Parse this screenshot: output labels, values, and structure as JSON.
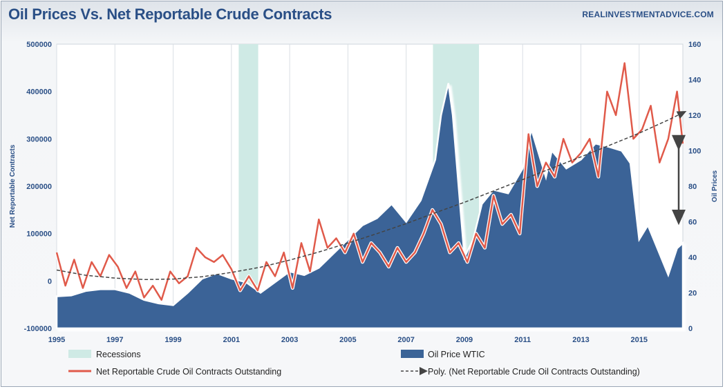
{
  "title": "Oil Prices Vs. Net Reportable Crude Contracts",
  "site": "REALINVESTMENTADVICE.COM",
  "chart_data": {
    "type": "area",
    "title": "Oil Prices Vs. Net Reportable Crude Contracts",
    "ylabel_left": "Net Reportable Contracts",
    "ylabel_right": "Oil Prices",
    "xlim": [
      1995,
      2016.5
    ],
    "ylim_left": [
      -100000,
      500000
    ],
    "ylim_right": [
      0,
      160
    ],
    "x_ticks": [
      "1995",
      "1997",
      "1999",
      "2001",
      "2003",
      "2005",
      "2007",
      "2009",
      "2011",
      "2013",
      "2015"
    ],
    "y_left_ticks": [
      "-100000",
      "0",
      "100000",
      "200000",
      "300000",
      "400000",
      "500000"
    ],
    "y_right_ticks": [
      "0",
      "20",
      "40",
      "60",
      "80",
      "100",
      "120",
      "140",
      "160"
    ],
    "grid": "vertical",
    "legend_position": "bottom",
    "colors": {
      "recessions": "#cfeae5",
      "oil": "#3b6497",
      "contracts": "#e05a4a",
      "poly": "#444444",
      "arrow": "#444444"
    },
    "recessions": [
      [
        2001.25,
        2001.92
      ],
      [
        2007.92,
        2009.5
      ]
    ],
    "series": [
      {
        "name": "Oil Price WTIC",
        "axis": "right",
        "style": "area",
        "x": [
          1995,
          1995.5,
          1996,
          1996.5,
          1997,
          1997.5,
          1998,
          1998.5,
          1999,
          1999.5,
          2000,
          2000.5,
          2001,
          2001.5,
          2002,
          2002.5,
          2003,
          2003.5,
          2004,
          2004.5,
          2005,
          2005.5,
          2006,
          2006.5,
          2007,
          2007.5,
          2008,
          2008.2,
          2008.45,
          2008.6,
          2008.9,
          2009,
          2009.3,
          2009.6,
          2010,
          2010.5,
          2011,
          2011.3,
          2011.8,
          2012,
          2012.5,
          2013,
          2013.5,
          2014,
          2014.4,
          2014.7,
          2015,
          2015.3,
          2015.7,
          2016,
          2016.3,
          2016.5
        ],
        "y": [
          18,
          18.5,
          21,
          22,
          22,
          20,
          16,
          14,
          13,
          20,
          28,
          31,
          28,
          26,
          20,
          26,
          32,
          30,
          34,
          42,
          50,
          58,
          62,
          70,
          60,
          72,
          95,
          120,
          138,
          120,
          60,
          40,
          50,
          70,
          78,
          76,
          90,
          112,
          85,
          100,
          90,
          95,
          104,
          102,
          100,
          93,
          50,
          58,
          42,
          30,
          45,
          48
        ]
      },
      {
        "name": "Net Reportable Crude Oil Contracts Outstanding",
        "axis": "left",
        "style": "line",
        "x": [
          1995,
          1995.3,
          1995.6,
          1995.9,
          1996.2,
          1996.5,
          1996.8,
          1997.1,
          1997.4,
          1997.7,
          1998,
          1998.3,
          1998.6,
          1998.9,
          1999.2,
          1999.5,
          1999.8,
          2000.1,
          2000.4,
          2000.7,
          2001,
          2001.3,
          2001.6,
          2001.9,
          2002.2,
          2002.5,
          2002.8,
          2003.1,
          2003.4,
          2003.7,
          2004,
          2004.3,
          2004.6,
          2004.9,
          2005.2,
          2005.5,
          2005.8,
          2006.1,
          2006.4,
          2006.7,
          2007,
          2007.3,
          2007.6,
          2007.9,
          2008.2,
          2008.5,
          2008.8,
          2009.1,
          2009.4,
          2009.7,
          2010,
          2010.3,
          2010.6,
          2010.9,
          2011.2,
          2011.5,
          2011.8,
          2012.1,
          2012.4,
          2012.7,
          2013,
          2013.3,
          2013.6,
          2013.9,
          2014.2,
          2014.5,
          2014.8,
          2015.1,
          2015.4,
          2015.7,
          2016,
          2016.3,
          2016.5
        ],
        "y": [
          60000,
          -10000,
          45000,
          -15000,
          40000,
          10000,
          55000,
          30000,
          -15000,
          20000,
          -35000,
          -10000,
          -40000,
          20000,
          -5000,
          10000,
          70000,
          50000,
          40000,
          55000,
          25000,
          -20000,
          10000,
          -20000,
          40000,
          10000,
          60000,
          -15000,
          80000,
          20000,
          130000,
          70000,
          90000,
          60000,
          100000,
          40000,
          80000,
          60000,
          30000,
          70000,
          40000,
          60000,
          100000,
          150000,
          120000,
          60000,
          80000,
          40000,
          100000,
          70000,
          180000,
          120000,
          140000,
          100000,
          310000,
          200000,
          250000,
          220000,
          300000,
          250000,
          270000,
          300000,
          220000,
          400000,
          350000,
          460000,
          300000,
          320000,
          370000,
          250000,
          300000,
          400000,
          290000
        ]
      },
      {
        "name": "Poly. (Net Reportable Crude Oil Contracts Outstanding)",
        "axis": "left",
        "style": "dashed",
        "x": [
          1995,
          1996,
          1997,
          1998,
          1999,
          2000,
          2001,
          2002,
          2003,
          2004,
          2005,
          2006,
          2007,
          2008,
          2009,
          2010,
          2011,
          2012,
          2013,
          2014,
          2015,
          2016,
          2016.5
        ],
        "y": [
          23000,
          12000,
          6000,
          3000,
          4000,
          9000,
          18000,
          29000,
          44000,
          61000,
          80000,
          100000,
          121000,
          144000,
          166000,
          190000,
          214000,
          238000,
          262000,
          287000,
          312000,
          340000,
          355000
        ]
      }
    ],
    "annotations": [
      {
        "type": "double-arrow",
        "x": 2016.5,
        "y_from": 104,
        "y_to": 62,
        "axis": "right"
      }
    ]
  }
}
